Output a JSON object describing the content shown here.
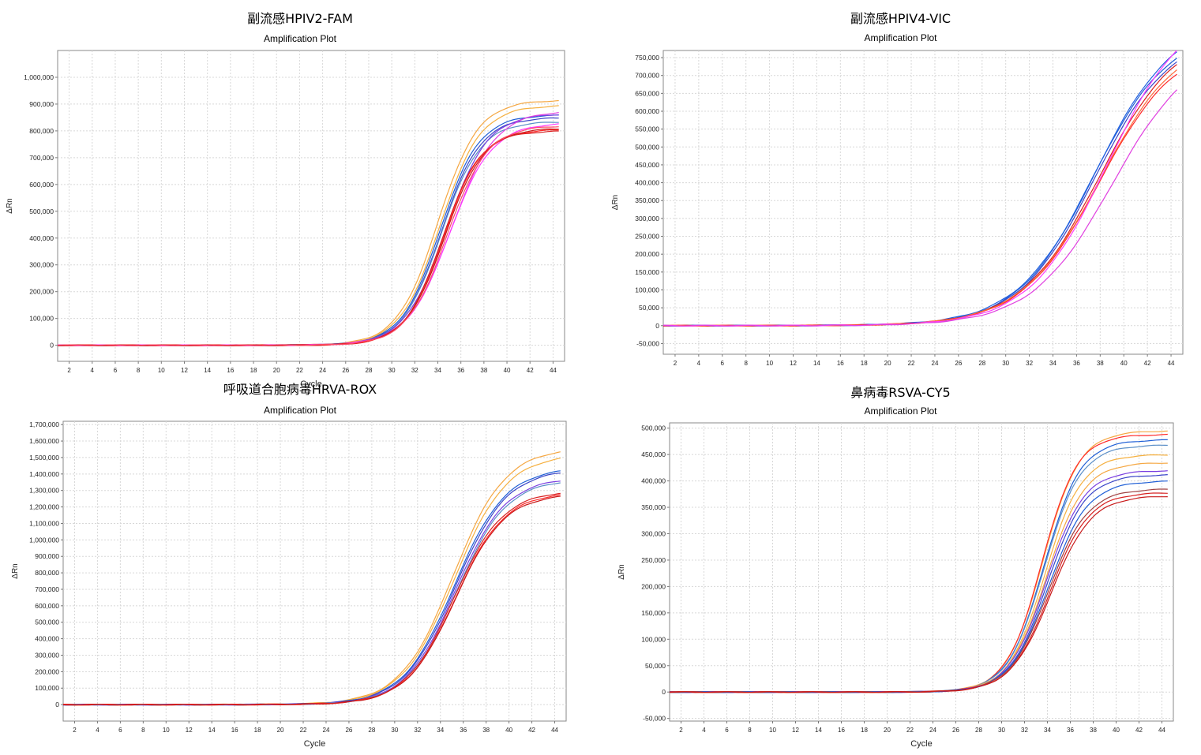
{
  "chart_data": [
    {
      "type": "line",
      "title": "副流感HPIV2-FAM",
      "subtitle": "Amplification Plot",
      "xlabel": "Cycle",
      "ylabel": "ΔRn",
      "xlim": [
        1,
        45
      ],
      "ylim": [
        -60000,
        1100000
      ],
      "x_ticks": [
        2,
        4,
        6,
        8,
        10,
        12,
        14,
        16,
        18,
        20,
        22,
        24,
        26,
        28,
        30,
        32,
        34,
        36,
        38,
        40,
        42,
        44
      ],
      "y_ticks": [
        0,
        100000,
        200000,
        300000,
        400000,
        500000,
        600000,
        700000,
        800000,
        900000,
        1000000
      ],
      "y_tick_labels": [
        "0",
        "100,000",
        "200,000",
        "300,000",
        "400,000",
        "500,000",
        "600,000",
        "700,000",
        "800,000",
        "900,000",
        "1,000,000"
      ],
      "grid": true,
      "colors": [
        "#f5a742",
        "#f5b040",
        "#1f5fd6",
        "#3a45c8",
        "#5b8fc8",
        "#7a40e0",
        "#e040e0",
        "#ff3aff",
        "#d82020",
        "#ff2a2a",
        "#c81a1a",
        "#ff4a6a"
      ],
      "series": [
        {
          "color": "#f5a742",
          "plateau": 915000,
          "midpoint": 34.0,
          "slope": 1.75
        },
        {
          "color": "#f5b040",
          "plateau": 895000,
          "midpoint": 34.2,
          "slope": 1.75
        },
        {
          "color": "#1f5fd6",
          "plateau": 860000,
          "midpoint": 34.2,
          "slope": 1.7
        },
        {
          "color": "#3a45c8",
          "plateau": 850000,
          "midpoint": 34.3,
          "slope": 1.7
        },
        {
          "color": "#5b8fc8",
          "plateau": 835000,
          "midpoint": 34.3,
          "slope": 1.7
        },
        {
          "color": "#7a40e0",
          "plateau": 865000,
          "midpoint": 34.7,
          "slope": 1.8
        },
        {
          "color": "#e040e0",
          "plateau": 875000,
          "midpoint": 35.2,
          "slope": 1.9
        },
        {
          "color": "#ff3aff",
          "plateau": 830000,
          "midpoint": 35.0,
          "slope": 1.85
        },
        {
          "color": "#d82020",
          "plateau": 800000,
          "midpoint": 34.4,
          "slope": 1.65
        },
        {
          "color": "#ff2a2a",
          "plateau": 805000,
          "midpoint": 34.5,
          "slope": 1.65
        },
        {
          "color": "#c81a1a",
          "plateau": 810000,
          "midpoint": 34.6,
          "slope": 1.7
        },
        {
          "color": "#ff4a6a",
          "plateau": 820000,
          "midpoint": 34.8,
          "slope": 1.75
        }
      ]
    },
    {
      "type": "line",
      "title": "副流感HPIV4-VIC",
      "subtitle": "Amplification Plot",
      "xlabel": "",
      "ylabel": "ΔRn",
      "xlim": [
        1,
        45
      ],
      "ylim": [
        -80000,
        770000
      ],
      "x_ticks": [
        2,
        4,
        6,
        8,
        10,
        12,
        14,
        16,
        18,
        20,
        22,
        24,
        26,
        28,
        30,
        32,
        34,
        36,
        38,
        40,
        42,
        44
      ],
      "y_ticks": [
        -50000,
        0,
        50000,
        100000,
        150000,
        200000,
        250000,
        300000,
        350000,
        400000,
        450000,
        500000,
        550000,
        600000,
        650000,
        700000,
        750000
      ],
      "y_tick_labels": [
        "-50,000",
        "0",
        "50,000",
        "100,000",
        "150,000",
        "200,000",
        "250,000",
        "300,000",
        "350,000",
        "400,000",
        "450,000",
        "500,000",
        "550,000",
        "600,000",
        "650,000",
        "700,000",
        "750,000"
      ],
      "grid": true,
      "colors": [
        "#1f5fd6",
        "#3a45c8",
        "#2060e0",
        "#d82020",
        "#ff2a2a",
        "#ff6a3a",
        "#ff3aff",
        "#e040e0"
      ],
      "series": [
        {
          "color": "#1f5fd6",
          "plateau": 830000,
          "midpoint": 37.4,
          "slope": 3.2
        },
        {
          "color": "#3a45c8",
          "plateau": 820000,
          "midpoint": 37.5,
          "slope": 3.2
        },
        {
          "color": "#2060e0",
          "plateau": 860000,
          "midpoint": 37.6,
          "slope": 3.3
        },
        {
          "color": "#d82020",
          "plateau": 830000,
          "midpoint": 37.9,
          "slope": 3.3
        },
        {
          "color": "#ff2a2a",
          "plateau": 800000,
          "midpoint": 37.9,
          "slope": 3.3
        },
        {
          "color": "#ff6a3a",
          "plateau": 820000,
          "midpoint": 38.0,
          "slope": 3.35
        },
        {
          "color": "#ff3aff",
          "plateau": 900000,
          "midpoint": 38.6,
          "slope": 3.3
        },
        {
          "color": "#e040e0",
          "plateau": 790000,
          "midpoint": 39.0,
          "slope": 3.4
        }
      ]
    },
    {
      "type": "line",
      "title": "呼吸道合胞病毒HRVA-ROX",
      "subtitle": "Amplification Plot",
      "xlabel": "Cycle",
      "ylabel": "ΔRn",
      "xlim": [
        1,
        45
      ],
      "ylim": [
        -100000,
        1720000
      ],
      "x_ticks": [
        2,
        4,
        6,
        8,
        10,
        12,
        14,
        16,
        18,
        20,
        22,
        24,
        26,
        28,
        30,
        32,
        34,
        36,
        38,
        40,
        42,
        44
      ],
      "y_ticks": [
        0,
        100000,
        200000,
        300000,
        400000,
        500000,
        600000,
        700000,
        800000,
        900000,
        1000000,
        1100000,
        1200000,
        1300000,
        1400000,
        1500000,
        1600000,
        1700000
      ],
      "y_tick_labels": [
        "0",
        "100,000",
        "200,000",
        "300,000",
        "400,000",
        "500,000",
        "600,000",
        "700,000",
        "800,000",
        "900,000",
        "1,000,000",
        "1,100,000",
        "1,200,000",
        "1,300,000",
        "1,400,000",
        "1,500,000",
        "1,600,000",
        "1,700,000"
      ],
      "grid": true,
      "colors": [
        "#f5a742",
        "#f5b040",
        "#1f5fd6",
        "#3a45c8",
        "#7a40e0",
        "#5b8fc8",
        "#d82020",
        "#ff2a2a",
        "#c81a1a"
      ],
      "series": [
        {
          "color": "#f5a742",
          "plateau": 1560000,
          "midpoint": 35.1,
          "slope": 2.3
        },
        {
          "color": "#f5b040",
          "plateau": 1520000,
          "midpoint": 35.2,
          "slope": 2.3
        },
        {
          "color": "#1f5fd6",
          "plateau": 1440000,
          "midpoint": 35.2,
          "slope": 2.25
        },
        {
          "color": "#3a45c8",
          "plateau": 1430000,
          "midpoint": 35.3,
          "slope": 2.25
        },
        {
          "color": "#7a40e0",
          "plateau": 1380000,
          "midpoint": 35.3,
          "slope": 2.2
        },
        {
          "color": "#5b8fc8",
          "plateau": 1370000,
          "midpoint": 35.4,
          "slope": 2.2
        },
        {
          "color": "#d82020",
          "plateau": 1300000,
          "midpoint": 35.2,
          "slope": 2.15
        },
        {
          "color": "#ff2a2a",
          "plateau": 1290000,
          "midpoint": 35.3,
          "slope": 2.15
        },
        {
          "color": "#c81a1a",
          "plateau": 1280000,
          "midpoint": 35.3,
          "slope": 2.15
        }
      ]
    },
    {
      "type": "line",
      "title": "鼻病毒RSVA-CY5",
      "subtitle": "Amplification Plot",
      "xlabel": "Cycle",
      "ylabel": "ΔRn",
      "xlim": [
        1,
        45
      ],
      "ylim": [
        -55000,
        510000
      ],
      "x_ticks": [
        2,
        4,
        6,
        8,
        10,
        12,
        14,
        16,
        18,
        20,
        22,
        24,
        26,
        28,
        30,
        32,
        34,
        36,
        38,
        40,
        42,
        44
      ],
      "y_ticks": [
        -50000,
        0,
        50000,
        100000,
        150000,
        200000,
        250000,
        300000,
        350000,
        400000,
        450000,
        500000
      ],
      "y_tick_labels": [
        "-50,000",
        "0",
        "50,000",
        "100,000",
        "150,000",
        "200,000",
        "250,000",
        "300,000",
        "350,000",
        "400,000",
        "450,000",
        "500,000"
      ],
      "grid": true,
      "colors": [
        "#f5a742",
        "#ff2a2a",
        "#1f5fd6",
        "#5b8fc8",
        "#f5b040",
        "#f5a742",
        "#7a40e0",
        "#3a45c8",
        "#1f5fd6",
        "#a04040",
        "#d82020",
        "#c81a1a"
      ],
      "series": [
        {
          "color": "#f5a742",
          "plateau": 495000,
          "midpoint": 33.6,
          "slope": 1.6
        },
        {
          "color": "#ff2a2a",
          "plateau": 488000,
          "midpoint": 33.5,
          "slope": 1.55
        },
        {
          "color": "#1f5fd6",
          "plateau": 478000,
          "midpoint": 33.7,
          "slope": 1.6
        },
        {
          "color": "#5b8fc8",
          "plateau": 468000,
          "midpoint": 33.7,
          "slope": 1.6
        },
        {
          "color": "#f5b040",
          "plateau": 450000,
          "midpoint": 33.8,
          "slope": 1.6
        },
        {
          "color": "#f5a742",
          "plateau": 435000,
          "midpoint": 33.9,
          "slope": 1.65
        },
        {
          "color": "#7a40e0",
          "plateau": 420000,
          "midpoint": 33.9,
          "slope": 1.65
        },
        {
          "color": "#3a45c8",
          "plateau": 412000,
          "midpoint": 34.0,
          "slope": 1.65
        },
        {
          "color": "#1f5fd6",
          "plateau": 400000,
          "midpoint": 34.1,
          "slope": 1.7
        },
        {
          "color": "#a04040",
          "plateau": 385000,
          "midpoint": 34.1,
          "slope": 1.7
        },
        {
          "color": "#d82020",
          "plateau": 378000,
          "midpoint": 34.2,
          "slope": 1.7
        },
        {
          "color": "#c81a1a",
          "plateau": 372000,
          "midpoint": 34.3,
          "slope": 1.75
        }
      ]
    }
  ]
}
